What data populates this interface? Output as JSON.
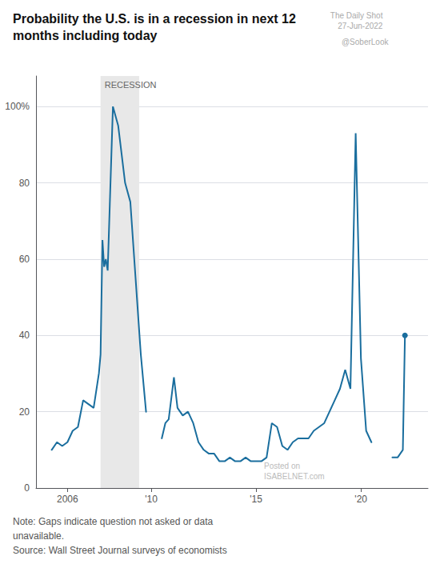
{
  "chart_data": {
    "type": "line",
    "title": "Probability the U.S. is in a recession in next 12\nmonths including today",
    "x": [
      2005.25,
      2005.5,
      2005.75,
      2006.0,
      2006.25,
      2006.5,
      2006.75,
      2007.0,
      2007.25,
      2007.5,
      2007.58,
      2007.67,
      2007.75,
      2007.83,
      2007.92,
      2008.17,
      2008.42,
      2008.75,
      2009.0,
      2009.25,
      2009.5,
      2009.75,
      2010.0,
      2010.5,
      2010.67,
      2010.83,
      2011.08,
      2011.25,
      2011.5,
      2011.75,
      2012.0,
      2012.25,
      2012.5,
      2012.75,
      2013.0,
      2013.25,
      2013.5,
      2013.75,
      2014.0,
      2014.25,
      2014.5,
      2014.75,
      2015.0,
      2015.25,
      2015.5,
      2015.75,
      2016.0,
      2016.25,
      2016.5,
      2016.75,
      2017.0,
      2017.25,
      2017.5,
      2017.75,
      2018.0,
      2018.25,
      2018.5,
      2018.75,
      2019.0,
      2019.25,
      2019.5,
      2019.75,
      2020.0,
      2020.25,
      2020.5,
      2020.75,
      2021.5,
      2021.75,
      2022.0,
      2022.1
    ],
    "values": [
      10,
      12,
      11,
      12,
      15,
      16,
      23,
      22,
      21,
      30,
      35,
      65,
      58,
      60,
      57,
      100,
      95,
      80,
      75,
      55,
      35,
      20,
      null,
      13,
      17,
      18,
      29,
      21,
      19,
      20,
      17,
      12,
      10,
      9,
      9,
      7,
      7,
      8,
      7,
      7,
      8,
      7,
      7,
      7,
      8,
      17,
      16,
      11,
      10,
      12,
      13,
      13,
      13,
      15,
      16,
      17,
      20,
      23,
      26,
      31,
      26,
      93,
      34,
      15,
      12,
      null,
      8,
      8,
      10,
      40
    ],
    "color": "#1a6e9e",
    "xlim": [
      2004.5,
      2023.2
    ],
    "ylim": [
      0,
      108
    ],
    "xticks": [
      2006,
      {
        "value": 2010,
        "label": "'10"
      },
      {
        "value": 2015,
        "label": "'15"
      },
      {
        "value": 2020,
        "label": "'20"
      }
    ],
    "yticks": [
      0,
      20,
      40,
      60,
      80,
      {
        "value": 100,
        "label": "100%"
      }
    ],
    "grid": true,
    "shaded_ranges": [
      {
        "from": 2007.58,
        "to": 2009.42,
        "label": "RECESSION",
        "color": "#e8e8e8"
      }
    ],
    "annotations": [
      "The Daily Shot\n27-Jun-2022",
      "@SoberLook",
      "Posted on\nISABELNET.com",
      "Note: Gaps indicate question not asked or data\nunavailable.\nSource: Wall Street Journal surveys of economists"
    ]
  }
}
